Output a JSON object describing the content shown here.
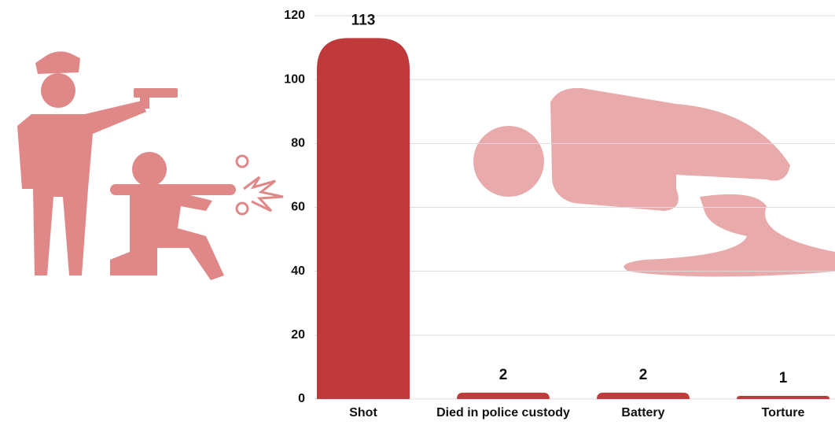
{
  "chart_data": {
    "type": "bar",
    "categories": [
      "Shot",
      "Died in police custody",
      "Battery",
      "Torture"
    ],
    "values": [
      113,
      2,
      2,
      1
    ],
    "color": "#c0393b",
    "ylim": [
      0,
      120
    ],
    "yticks": [
      0,
      20,
      40,
      60,
      80,
      100,
      120
    ],
    "grid": true
  }
}
